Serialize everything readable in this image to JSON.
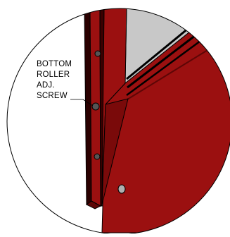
{
  "callout": {
    "lines": [
      "BOTTOM",
      "ROLLER",
      "ADJ.",
      "SCREW"
    ]
  },
  "colors": {
    "frame_red": "#9b1010",
    "frame_dark": "#5e0606",
    "glass": "#c8c8c8",
    "outline": "#000000"
  }
}
